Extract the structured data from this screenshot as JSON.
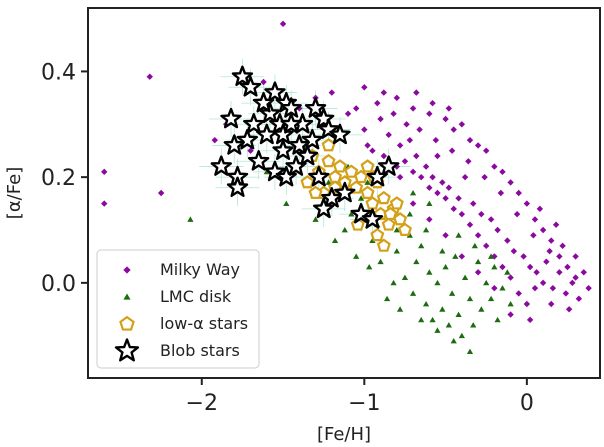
{
  "chart_data": {
    "type": "scatter",
    "xlabel": "[Fe/H]",
    "ylabel": "[α/Fe]",
    "xlim": [
      -2.7,
      0.45
    ],
    "ylim": [
      -0.18,
      0.52
    ],
    "xticks": [
      -2,
      -1,
      0
    ],
    "xtick_labels": [
      "−2",
      "−1",
      "0"
    ],
    "yticks": [
      0.0,
      0.2,
      0.4
    ],
    "ytick_labels": [
      "0.0",
      "0.2",
      "0.4"
    ],
    "grid": false,
    "legend_position": "lower-left",
    "series": [
      {
        "name": "Milky Way",
        "marker": "diamond",
        "color": "#8b0a9e",
        "points": [
          [
            -2.6,
            0.21
          ],
          [
            -2.6,
            0.15
          ],
          [
            -2.32,
            0.39
          ],
          [
            -1.62,
            0.38
          ],
          [
            -1.5,
            0.49
          ],
          [
            -1.2,
            0.36
          ],
          [
            -1.0,
            0.37
          ],
          [
            -0.88,
            0.36
          ],
          [
            -0.8,
            0.35
          ],
          [
            -0.7,
            0.33
          ],
          [
            -0.6,
            0.32
          ],
          [
            -0.5,
            0.31
          ],
          [
            -0.45,
            0.29
          ],
          [
            -0.4,
            0.3
          ],
          [
            -0.35,
            0.27
          ],
          [
            -0.3,
            0.26
          ],
          [
            -0.25,
            0.25
          ],
          [
            -0.2,
            0.22
          ],
          [
            -0.15,
            0.21
          ],
          [
            -0.1,
            0.19
          ],
          [
            -0.05,
            0.17
          ],
          [
            0.0,
            0.15
          ],
          [
            0.05,
            0.12
          ],
          [
            0.1,
            0.1
          ],
          [
            0.15,
            0.08
          ],
          [
            0.2,
            0.05
          ],
          [
            0.25,
            0.03
          ],
          [
            0.3,
            0.01
          ],
          [
            -0.9,
            0.31
          ],
          [
            -0.85,
            0.28
          ],
          [
            -0.78,
            0.26
          ],
          [
            -0.72,
            0.27
          ],
          [
            -0.68,
            0.24
          ],
          [
            -0.62,
            0.22
          ],
          [
            -0.58,
            0.2
          ],
          [
            -0.55,
            0.24
          ],
          [
            -0.52,
            0.19
          ],
          [
            -0.48,
            0.18
          ],
          [
            -0.42,
            0.16
          ],
          [
            -0.38,
            0.2
          ],
          [
            -0.33,
            0.15
          ],
          [
            -0.28,
            0.13
          ],
          [
            -0.22,
            0.12
          ],
          [
            -0.18,
            0.1
          ],
          [
            -0.12,
            0.08
          ],
          [
            -0.08,
            0.06
          ],
          [
            -0.02,
            0.05
          ],
          [
            0.02,
            0.03
          ],
          [
            0.06,
            0.02
          ],
          [
            0.1,
            0.0
          ],
          [
            0.12,
            0.04
          ],
          [
            0.16,
            -0.01
          ],
          [
            0.2,
            0.02
          ],
          [
            0.24,
            -0.02
          ],
          [
            0.28,
            0.0
          ],
          [
            0.32,
            -0.03
          ],
          [
            -0.05,
            -0.02
          ],
          [
            0.0,
            -0.04
          ],
          [
            0.05,
            -0.01
          ],
          [
            -0.1,
            0.01
          ],
          [
            -0.15,
            0.03
          ],
          [
            -0.2,
            0.05
          ],
          [
            -0.25,
            0.07
          ],
          [
            -0.3,
            0.09
          ],
          [
            -0.35,
            0.11
          ],
          [
            -0.4,
            0.13
          ],
          [
            -0.45,
            0.14
          ],
          [
            -0.5,
            0.16
          ],
          [
            -0.55,
            0.17
          ],
          [
            -0.6,
            0.18
          ],
          [
            -0.65,
            0.2
          ],
          [
            -0.7,
            0.21
          ],
          [
            -0.75,
            0.23
          ],
          [
            -0.8,
            0.22
          ],
          [
            -0.95,
            0.25
          ],
          [
            -1.0,
            0.29
          ],
          [
            -1.05,
            0.33
          ],
          [
            -0.92,
            0.34
          ],
          [
            -0.82,
            0.32
          ],
          [
            -0.74,
            0.3
          ],
          [
            -0.66,
            0.29
          ],
          [
            -0.56,
            0.27
          ],
          [
            -0.46,
            0.25
          ],
          [
            -0.36,
            0.23
          ],
          [
            -0.26,
            0.2
          ],
          [
            -0.16,
            0.17
          ],
          [
            -0.06,
            0.13
          ],
          [
            0.04,
            0.09
          ],
          [
            0.14,
            0.06
          ],
          [
            0.22,
            0.07
          ],
          [
            0.35,
            0.02
          ],
          [
            0.38,
            -0.01
          ],
          [
            0.3,
            0.05
          ],
          [
            0.18,
            0.11
          ],
          [
            0.08,
            0.14
          ],
          [
            -1.3,
            0.35
          ],
          [
            -1.4,
            0.33
          ],
          [
            -1.25,
            0.3
          ],
          [
            -1.1,
            0.32
          ],
          [
            -1.85,
            0.3
          ],
          [
            -1.92,
            0.27
          ],
          [
            -2.25,
            0.17
          ],
          [
            -1.7,
            0.25
          ],
          [
            -0.1,
            -0.06
          ],
          [
            0.02,
            -0.07
          ],
          [
            0.15,
            -0.04
          ],
          [
            0.26,
            -0.05
          ],
          [
            -0.2,
            -0.01
          ],
          [
            -0.3,
            0.02
          ],
          [
            -0.4,
            0.05
          ],
          [
            -0.5,
            0.09
          ],
          [
            -0.6,
            0.12
          ],
          [
            -0.7,
            0.15
          ],
          [
            -0.68,
            0.36
          ],
          [
            -0.58,
            0.34
          ],
          [
            -0.48,
            0.33
          ],
          [
            -0.98,
            0.26
          ],
          [
            -0.88,
            0.24
          ],
          [
            -0.78,
            0.2
          ]
        ]
      },
      {
        "name": "LMC disk",
        "marker": "triangle",
        "color": "#1e6b12",
        "points": [
          [
            -2.07,
            0.12
          ],
          [
            -1.6,
            0.21
          ],
          [
            -1.48,
            0.15
          ],
          [
            -1.38,
            0.26
          ],
          [
            -1.3,
            0.12
          ],
          [
            -1.22,
            0.19
          ],
          [
            -1.12,
            0.1
          ],
          [
            -1.02,
            0.16
          ],
          [
            -0.95,
            0.08
          ],
          [
            -0.9,
            0.04
          ],
          [
            -0.85,
            0.13
          ],
          [
            -0.8,
            0.06
          ],
          [
            -0.75,
            0.01
          ],
          [
            -0.72,
            0.09
          ],
          [
            -0.7,
            -0.02
          ],
          [
            -0.68,
            0.04
          ],
          [
            -0.65,
            0.07
          ],
          [
            -0.62,
            -0.04
          ],
          [
            -0.6,
            0.02
          ],
          [
            -0.58,
            -0.07
          ],
          [
            -0.55,
            0.0
          ],
          [
            -0.52,
            -0.05
          ],
          [
            -0.5,
            0.03
          ],
          [
            -0.48,
            -0.08
          ],
          [
            -0.46,
            -0.02
          ],
          [
            -0.44,
            0.05
          ],
          [
            -0.42,
            -0.06
          ],
          [
            -0.4,
            -0.1
          ],
          [
            -0.38,
            0.01
          ],
          [
            -0.35,
            -0.03
          ],
          [
            -0.33,
            -0.08
          ],
          [
            -0.3,
            0.04
          ],
          [
            -0.28,
            -0.05
          ],
          [
            -0.25,
            0.0
          ],
          [
            -0.22,
            -0.03
          ],
          [
            -0.2,
            0.03
          ],
          [
            -0.18,
            -0.07
          ],
          [
            -0.15,
            -0.01
          ],
          [
            -0.12,
            0.02
          ],
          [
            -0.1,
            -0.04
          ],
          [
            -0.78,
            -0.05
          ],
          [
            -0.82,
            0.0
          ],
          [
            -0.88,
            0.07
          ],
          [
            -0.92,
            0.11
          ],
          [
            -0.97,
            0.03
          ],
          [
            -1.05,
            0.05
          ],
          [
            -1.08,
            0.13
          ],
          [
            -1.15,
            0.17
          ],
          [
            -1.18,
            0.08
          ],
          [
            -1.25,
            0.21
          ],
          [
            -1.35,
            0.19
          ],
          [
            -1.42,
            0.23
          ],
          [
            -0.45,
            -0.11
          ],
          [
            -0.55,
            -0.09
          ],
          [
            -0.65,
            -0.07
          ],
          [
            -0.35,
            -0.13
          ],
          [
            -0.72,
            0.13
          ],
          [
            -0.62,
            0.1
          ],
          [
            -0.52,
            0.06
          ],
          [
            -0.42,
            0.09
          ],
          [
            -0.32,
            0.07
          ],
          [
            -0.22,
            0.05
          ],
          [
            -0.86,
            -0.03
          ],
          [
            -0.8,
            0.1
          ],
          [
            -0.7,
            0.17
          ],
          [
            -0.6,
            0.15
          ],
          [
            -0.98,
            0.19
          ],
          [
            -1.1,
            0.22
          ]
        ]
      },
      {
        "name": "low-α stars",
        "marker": "pentagon",
        "color": "#d4a017",
        "points": [
          [
            -1.32,
            0.24
          ],
          [
            -1.28,
            0.21
          ],
          [
            -1.25,
            0.17
          ],
          [
            -1.22,
            0.23
          ],
          [
            -1.18,
            0.2
          ],
          [
            -1.15,
            0.22
          ],
          [
            -1.12,
            0.19
          ],
          [
            -1.08,
            0.21
          ],
          [
            -1.05,
            0.18
          ],
          [
            -1.02,
            0.2
          ],
          [
            -0.98,
            0.17
          ],
          [
            -0.95,
            0.15
          ],
          [
            -0.92,
            0.19
          ],
          [
            -0.9,
            0.13
          ],
          [
            -0.88,
            0.16
          ],
          [
            -0.85,
            0.11
          ],
          [
            -0.82,
            0.14
          ],
          [
            -0.8,
            0.15
          ],
          [
            -0.78,
            0.12
          ],
          [
            -0.75,
            0.1
          ],
          [
            -0.88,
            0.07
          ],
          [
            -0.92,
            0.09
          ],
          [
            -0.98,
            0.22
          ],
          [
            -1.04,
            0.11
          ],
          [
            -1.18,
            0.18
          ],
          [
            -1.3,
            0.17
          ],
          [
            -1.35,
            0.19
          ],
          [
            -1.22,
            0.26
          ],
          [
            -0.94,
            0.2
          ],
          [
            -0.84,
            0.13
          ]
        ]
      },
      {
        "name": "Blob stars",
        "marker": "star",
        "color": "#000000",
        "points": [
          [
            -1.75,
            0.39
          ],
          [
            -1.55,
            0.36
          ],
          [
            -1.48,
            0.34
          ],
          [
            -1.82,
            0.31
          ],
          [
            -1.68,
            0.3
          ],
          [
            -1.58,
            0.32
          ],
          [
            -1.52,
            0.3
          ],
          [
            -1.45,
            0.33
          ],
          [
            -1.38,
            0.3
          ],
          [
            -1.3,
            0.33
          ],
          [
            -1.25,
            0.31
          ],
          [
            -1.22,
            0.29
          ],
          [
            -1.15,
            0.28
          ],
          [
            -1.32,
            0.27
          ],
          [
            -1.4,
            0.26
          ],
          [
            -1.5,
            0.25
          ],
          [
            -1.6,
            0.28
          ],
          [
            -1.72,
            0.27
          ],
          [
            -1.8,
            0.26
          ],
          [
            -1.88,
            0.22
          ],
          [
            -1.78,
            0.2
          ],
          [
            -1.65,
            0.23
          ],
          [
            -1.55,
            0.21
          ],
          [
            -1.48,
            0.2
          ],
          [
            -1.42,
            0.22
          ],
          [
            -1.35,
            0.24
          ],
          [
            -1.28,
            0.2
          ],
          [
            -1.2,
            0.16
          ],
          [
            -1.12,
            0.17
          ],
          [
            -1.02,
            0.13
          ],
          [
            -0.95,
            0.12
          ],
          [
            -0.85,
            0.22
          ],
          [
            -0.92,
            0.2
          ],
          [
            -1.5,
            0.28
          ],
          [
            -1.62,
            0.34
          ],
          [
            -1.7,
            0.37
          ],
          [
            -1.25,
            0.14
          ],
          [
            -1.78,
            0.18
          ],
          [
            -1.45,
            0.3
          ]
        ]
      }
    ]
  }
}
